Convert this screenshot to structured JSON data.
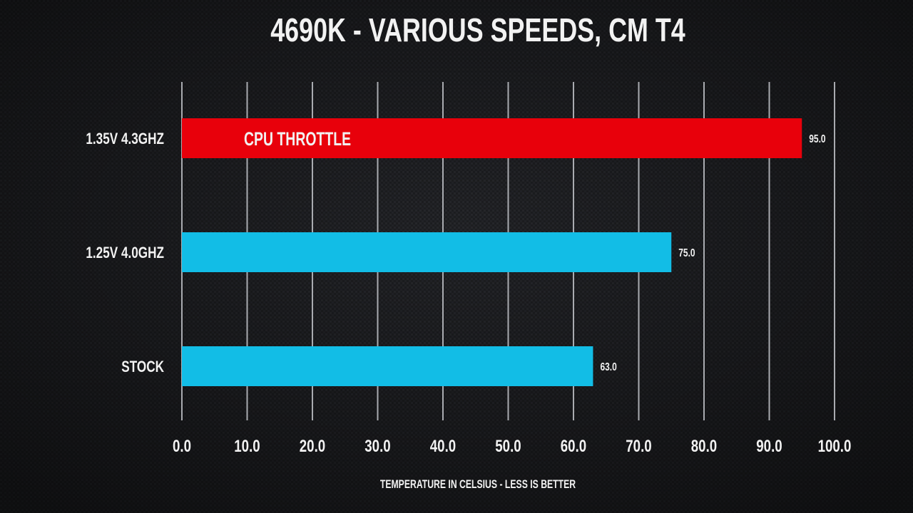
{
  "chart_data": {
    "type": "bar",
    "orientation": "horizontal",
    "title": "4690K - VARIOUS SPEEDS, CM T4",
    "xlabel": "TEMPERATURE IN CELSIUS - LESS IS BETTER",
    "ylabel": "",
    "categories": [
      "1.35V 4.3GHZ",
      "1.25V 4.0GHZ",
      "STOCK"
    ],
    "values": [
      95.0,
      75.0,
      63.0
    ],
    "value_labels": [
      "95.0",
      "75.0",
      "63.0"
    ],
    "bar_colors": [
      "#e8000b",
      "#12bde6",
      "#12bde6"
    ],
    "annotations": [
      {
        "category": "1.35V 4.3GHZ",
        "text": "CPU THROTTLE"
      }
    ],
    "xlim": [
      0,
      100
    ],
    "xticks": [
      "0.0",
      "10.0",
      "20.0",
      "30.0",
      "40.0",
      "50.0",
      "60.0",
      "70.0",
      "80.0",
      "90.0",
      "100.0"
    ],
    "grid": true,
    "legend": "none"
  }
}
